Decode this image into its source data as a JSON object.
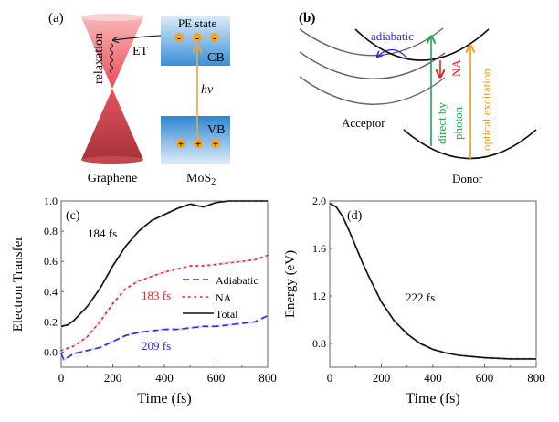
{
  "panel_a": {
    "label": "(a)",
    "relaxation": "relaxation",
    "et": "ET",
    "pe_state": "PE state",
    "cb": "CB",
    "vb": "VB",
    "hv": "hν",
    "graphene": "Graphene",
    "mos2": "MoS",
    "mos2_sub": "2",
    "electron": "-",
    "hole": "+",
    "colors": {
      "cone": "#e0505a",
      "band": "#3a8fd6",
      "carrier": "#f5a21f",
      "arrow": "#f0a830"
    }
  },
  "panel_b": {
    "label": "(b)",
    "adiabatic": "adiabatic",
    "na": "NA",
    "direct": "direct by",
    "photon": "photon",
    "optical": "optical excitation",
    "acceptor": "Acceptor",
    "donor": "Donor",
    "colors": {
      "adiabatic": "#2a2ae0",
      "na": "#e82020",
      "direct": "#1aa84a",
      "optical": "#f59a1a"
    }
  },
  "chart_data": [
    {
      "type": "line",
      "panel_label": "(c)",
      "xlabel": "Time (fs)",
      "ylabel": "Electron Transfer",
      "xlim": [
        0,
        800
      ],
      "ylim": [
        -0.1,
        1.0
      ],
      "xticks": [
        "0",
        "200",
        "400",
        "600",
        "800"
      ],
      "yticks": [
        "0.0",
        "0.2",
        "0.4",
        "0.6",
        "0.8",
        "1.0"
      ],
      "legend_position": "center-right",
      "annotations": [
        {
          "text": "184 fs",
          "color": "#222222"
        },
        {
          "text": "183 fs",
          "color": "#e82020"
        },
        {
          "text": "209 fs",
          "color": "#2a2ae0"
        }
      ],
      "series": [
        {
          "name": "Adiabatic",
          "style": "dashed",
          "color": "#2a2ae0",
          "x": [
            0,
            10,
            50,
            100,
            150,
            200,
            250,
            300,
            350,
            400,
            450,
            500,
            550,
            600,
            650,
            700,
            750,
            800
          ],
          "y": [
            -0.01,
            -0.05,
            -0.01,
            0.01,
            0.03,
            0.07,
            0.11,
            0.13,
            0.14,
            0.15,
            0.15,
            0.16,
            0.17,
            0.17,
            0.18,
            0.19,
            0.2,
            0.24
          ]
        },
        {
          "name": "NA",
          "style": "dotted",
          "color": "#e82020",
          "x": [
            0,
            50,
            100,
            150,
            200,
            250,
            300,
            350,
            400,
            450,
            500,
            550,
            600,
            650,
            700,
            750,
            800
          ],
          "y": [
            0.01,
            0.04,
            0.1,
            0.2,
            0.32,
            0.42,
            0.47,
            0.5,
            0.53,
            0.55,
            0.57,
            0.57,
            0.58,
            0.59,
            0.6,
            0.61,
            0.64
          ]
        },
        {
          "name": "Total",
          "style": "solid",
          "color": "#111111",
          "x": [
            0,
            25,
            50,
            100,
            150,
            200,
            250,
            300,
            350,
            400,
            450,
            500,
            550,
            600,
            650,
            700,
            750,
            800
          ],
          "y": [
            0.17,
            0.18,
            0.21,
            0.3,
            0.42,
            0.57,
            0.7,
            0.8,
            0.87,
            0.91,
            0.95,
            0.98,
            0.96,
            0.99,
            1.0,
            1.0,
            1.0,
            1.0
          ]
        }
      ]
    },
    {
      "type": "line",
      "panel_label": "(d)",
      "xlabel": "Time (fs)",
      "ylabel": "Energy (eV)",
      "xlim": [
        0,
        800
      ],
      "ylim": [
        0.6,
        2.0
      ],
      "xticks": [
        "0",
        "200",
        "400",
        "600",
        "800"
      ],
      "yticks": [
        "0.8",
        "1.2",
        "1.6",
        "2.0"
      ],
      "annotations": [
        {
          "text": "222 fs",
          "color": "#222222"
        }
      ],
      "series": [
        {
          "name": "Energy",
          "style": "solid",
          "color": "#111111",
          "x": [
            0,
            25,
            50,
            75,
            100,
            125,
            150,
            200,
            250,
            300,
            350,
            400,
            450,
            500,
            600,
            700,
            800
          ],
          "y": [
            1.98,
            1.95,
            1.87,
            1.75,
            1.62,
            1.49,
            1.37,
            1.15,
            0.99,
            0.88,
            0.8,
            0.75,
            0.72,
            0.7,
            0.68,
            0.67,
            0.67
          ]
        }
      ]
    }
  ]
}
